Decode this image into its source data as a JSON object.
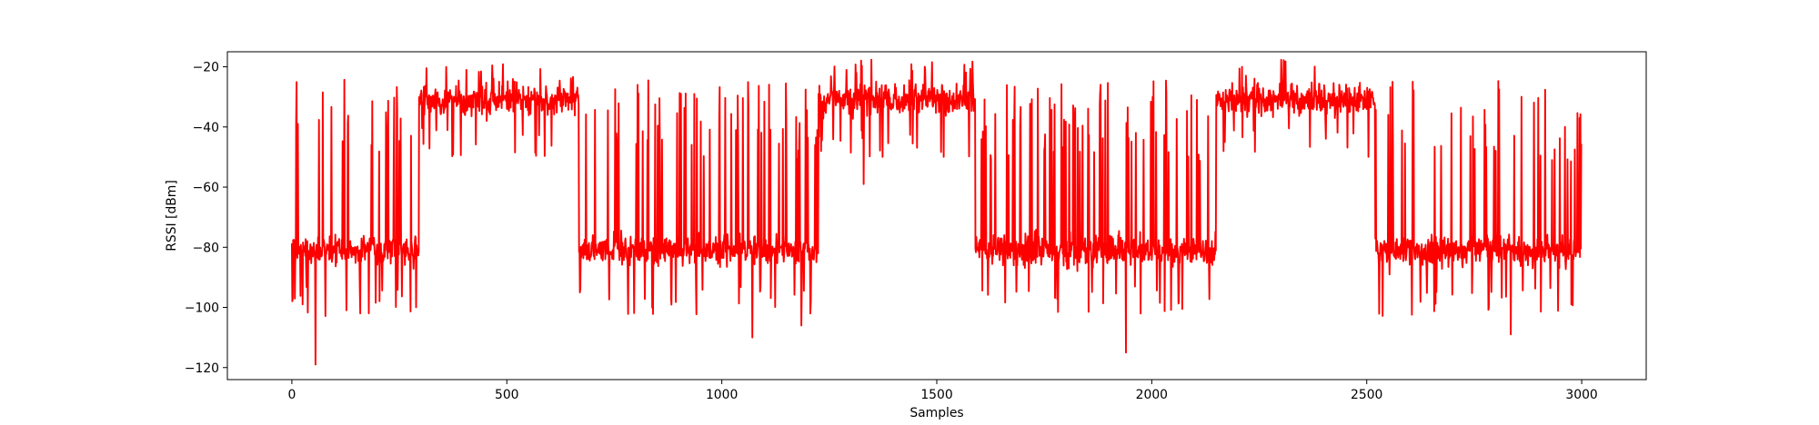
{
  "chart_data": {
    "type": "line",
    "title": "",
    "xlabel": "Samples",
    "ylabel": "RSSI [dBm]",
    "xlim": [
      -150,
      3150
    ],
    "ylim": [
      -124,
      -15
    ],
    "xticks": [
      0,
      500,
      1000,
      1500,
      2000,
      2500,
      3000
    ],
    "yticks": [
      -120,
      -100,
      -80,
      -60,
      -40,
      -20
    ],
    "grid": false,
    "legend": "none",
    "colors": {
      "line": "#ff0000",
      "axes": "#000000",
      "background": "#ffffff"
    },
    "series": [
      {
        "color": "#ff0000",
        "segments": [
          {
            "x_start": 0,
            "x_end": 296,
            "level": "low",
            "baseline": -81,
            "noise": 3.5,
            "spike_chance": 0.09,
            "spike_to": -37,
            "dip_chance": 0.05,
            "dip_to": -98
          },
          {
            "x_start": 296,
            "x_end": 668,
            "level": "high",
            "baseline": -31,
            "noise": 3.5,
            "spike_chance": 0.04,
            "spike_to": -23,
            "dip_chance": 0.06,
            "dip_to": -45
          },
          {
            "x_start": 668,
            "x_end": 1225,
            "level": "low",
            "baseline": -81,
            "noise": 3.5,
            "spike_chance": 0.09,
            "spike_to": -38,
            "dip_chance": 0.05,
            "dip_to": -98
          },
          {
            "x_start": 1225,
            "x_end": 1590,
            "level": "high",
            "baseline": -31,
            "noise": 3.5,
            "spike_chance": 0.04,
            "spike_to": -22,
            "dip_chance": 0.06,
            "dip_to": -45
          },
          {
            "x_start": 1590,
            "x_end": 2150,
            "level": "low",
            "baseline": -81,
            "noise": 3.5,
            "spike_chance": 0.09,
            "spike_to": -38,
            "dip_chance": 0.05,
            "dip_to": -98
          },
          {
            "x_start": 2150,
            "x_end": 2520,
            "level": "high",
            "baseline": -31,
            "noise": 3.5,
            "spike_chance": 0.04,
            "spike_to": -22,
            "dip_chance": 0.06,
            "dip_to": -45
          },
          {
            "x_start": 2520,
            "x_end": 3000,
            "level": "low",
            "baseline": -81,
            "noise": 3.5,
            "spike_chance": 0.09,
            "spike_to": -38,
            "dip_chance": 0.05,
            "dip_to": -98
          }
        ],
        "extremes": [
          {
            "x": 10,
            "y": -39
          },
          {
            "x": 25,
            "y": -99
          },
          {
            "x": 55,
            "y": -119
          },
          {
            "x": 185,
            "y": -46
          },
          {
            "x": 245,
            "y": -34
          },
          {
            "x": 670,
            "y": -95
          },
          {
            "x": 1071,
            "y": -110
          },
          {
            "x": 1185,
            "y": -106
          },
          {
            "x": 1330,
            "y": -59
          },
          {
            "x": 1290,
            "y": -21
          },
          {
            "x": 1940,
            "y": -115
          },
          {
            "x": 2210,
            "y": -20
          },
          {
            "x": 2560,
            "y": -25
          },
          {
            "x": 2835,
            "y": -109
          },
          {
            "x": 2995,
            "y": -37
          }
        ]
      }
    ]
  }
}
